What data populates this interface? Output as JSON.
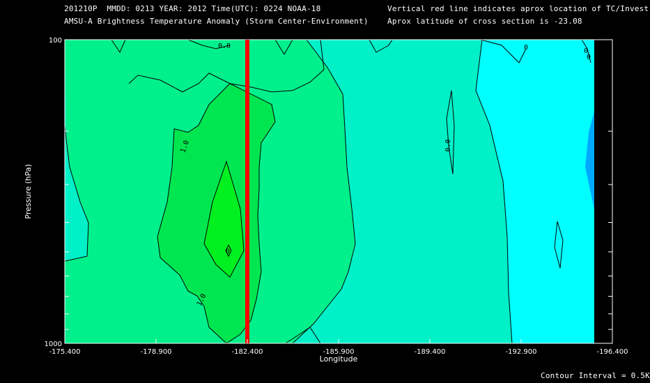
{
  "header": {
    "line1_left": "201210P  MMDD: 0213 YEAR: 2012 Time(UTC): 0224 NOAA-18",
    "line2_left": "AMSU-A Brightness Temperature Anomaly (Storm Center-Environment)",
    "line1_right": "Vertical red line indicates aprox location of TC/Invest",
    "line2_right": "Aprox latitude of cross section is -23.08"
  },
  "footer": {
    "contour_interval": "Contour Interval = 0.5K"
  },
  "colors": {
    "background": "#000000",
    "fill_cyan": "#00ffff",
    "fill_aqua": "#00f0c8",
    "fill_green1": "#00f08c",
    "fill_green2": "#00e650",
    "fill_green3": "#00f020",
    "fill_blue": "#00a8ff",
    "tc_line": "#ff0000"
  },
  "chart_data": {
    "type": "contour",
    "title": "AMSU-A Brightness Temperature Anomaly (Storm Center-Environment)",
    "xlabel": "Longitude",
    "ylabel": "Pressure (hPa)",
    "xlim": [
      -175.4,
      -196.4
    ],
    "ylim": [
      1000,
      100
    ],
    "y_scale": "log",
    "x_tick_labels": [
      "-175.400",
      "-178.900",
      "-182.400",
      "-185.900",
      "-189.400",
      "-192.900",
      "-196.400"
    ],
    "x_ticks": [
      -175.4,
      -178.9,
      -182.4,
      -185.9,
      -189.4,
      -192.9,
      -196.4
    ],
    "y_tick_labels": [
      "100",
      "1000"
    ],
    "y_ticks": [
      100,
      1000
    ],
    "y_minor_ticks": [
      200,
      300,
      400,
      500,
      600,
      700,
      800,
      900
    ],
    "tc_longitude": -182.4,
    "contour_labels": [
      "0.0",
      "1.0",
      "0.0",
      "0",
      "0",
      "0",
      "0",
      "1.0"
    ],
    "contour_interval_K": 0.5
  }
}
